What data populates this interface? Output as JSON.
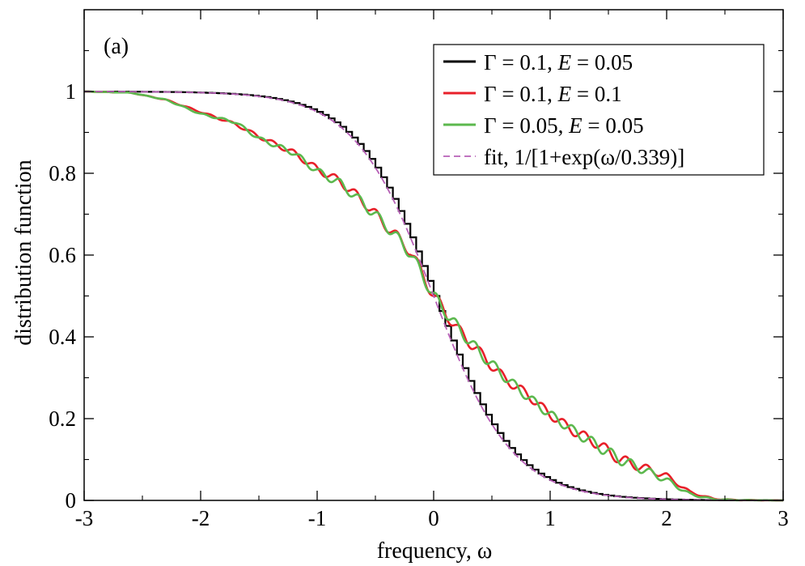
{
  "chart_data": {
    "type": "line",
    "panel_label": "(a)",
    "xlabel": "frequency, ω",
    "ylabel": "distribution function",
    "xlim": [
      -3,
      3
    ],
    "ylim": [
      0,
      1.2
    ],
    "xticks": [
      -3,
      -2,
      -1,
      0,
      1,
      2,
      3
    ],
    "xtick_labels": [
      "-3",
      "-2",
      "-1",
      "0",
      "1",
      "2",
      "3"
    ],
    "yticks": [
      0,
      0.2,
      0.4,
      0.6,
      0.8,
      1
    ],
    "ytick_labels": [
      "0",
      "0.2",
      "0.4",
      "0.6",
      "0.8",
      "1"
    ],
    "grid": false,
    "legend_position": "top-right",
    "series": [
      {
        "name": "Γ = 0.1, E = 0.05",
        "label_parts": [
          "Γ = 0.1, ",
          "E",
          " = 0.05"
        ],
        "color": "#000000",
        "style": "solid-stepped",
        "model": "fermi",
        "temperature": 0.339,
        "step": 0.05
      },
      {
        "name": "Γ = 0.1, E = 0.1",
        "label_parts": [
          "Γ = 0.1, ",
          "E",
          " = 0.1"
        ],
        "color": "#e8202a",
        "style": "solid-oscillating",
        "x": [
          -3,
          -2.6,
          -2.3,
          -2.0,
          -1.7,
          -1.5,
          -1.2,
          -1.0,
          -0.8,
          -0.6,
          -0.4,
          -0.2,
          0,
          0.2,
          0.4,
          0.6,
          0.8,
          1.0,
          1.2,
          1.4,
          1.6,
          1.8,
          2.0,
          2.2,
          2.4,
          2.6,
          3
        ],
        "y": [
          1.0,
          0.997,
          0.98,
          0.95,
          0.92,
          0.89,
          0.85,
          0.81,
          0.78,
          0.73,
          0.67,
          0.61,
          0.5,
          0.42,
          0.36,
          0.3,
          0.26,
          0.21,
          0.17,
          0.14,
          0.1,
          0.08,
          0.06,
          0.02,
          0.004,
          0.001,
          0.0
        ]
      },
      {
        "name": "Γ = 0.05, E = 0.05",
        "label_parts": [
          "Γ = 0.05, ",
          "E",
          " = 0.05"
        ],
        "color": "#5cb84e",
        "style": "solid-oscillating",
        "x": [
          -3,
          -2.6,
          -2.3,
          -2.0,
          -1.7,
          -1.5,
          -1.2,
          -1.0,
          -0.8,
          -0.6,
          -0.4,
          -0.2,
          0,
          0.2,
          0.4,
          0.6,
          0.8,
          1.0,
          1.2,
          1.4,
          1.6,
          1.8,
          2.0,
          2.2,
          2.4,
          2.6,
          3
        ],
        "y": [
          1.0,
          0.997,
          0.98,
          0.945,
          0.925,
          0.885,
          0.85,
          0.805,
          0.775,
          0.725,
          0.67,
          0.605,
          0.5,
          0.425,
          0.36,
          0.305,
          0.255,
          0.21,
          0.17,
          0.135,
          0.1,
          0.075,
          0.05,
          0.015,
          0.003,
          0.001,
          0.0
        ]
      },
      {
        "name": "fit, 1/[1+exp(ω/0.339)]",
        "label_parts": [
          "fit, 1/[1+exp(ω/0.339)]"
        ],
        "color": "#b760b7",
        "style": "dashed",
        "model": "fermi",
        "temperature": 0.339
      }
    ]
  }
}
